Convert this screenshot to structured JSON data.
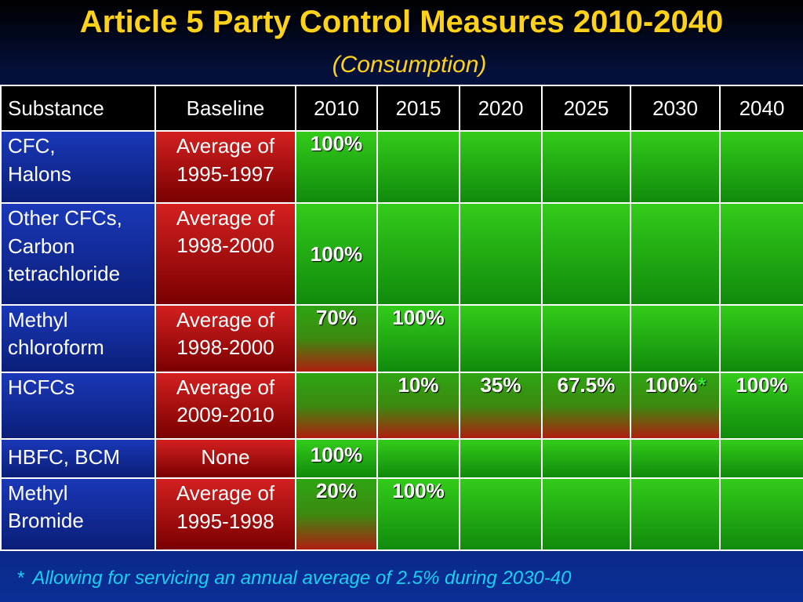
{
  "title": "Article 5 Party Control Measures 2010-2040",
  "subtitle": "(Consumption)",
  "headers": [
    "Substance",
    "Baseline",
    "2010",
    "2015",
    "2020",
    "2025",
    "2030",
    "2040"
  ],
  "rows": [
    {
      "substance": [
        "CFC,",
        "Halons"
      ],
      "baseline": [
        "Average of",
        "1995-1997"
      ],
      "values": [
        "100%",
        "",
        "",
        "",
        "",
        ""
      ]
    },
    {
      "substance": [
        "Other CFCs,",
        "Carbon",
        "tetrachloride"
      ],
      "baseline": [
        "Average of",
        "1998-2000"
      ],
      "values": [
        "100%",
        "",
        "",
        "",
        "",
        ""
      ]
    },
    {
      "substance": [
        "Methyl",
        "chloroform"
      ],
      "baseline": [
        "Average of",
        "1998-2000"
      ],
      "values": [
        "70%",
        "100%",
        "",
        "",
        "",
        ""
      ]
    },
    {
      "substance": [
        "HCFCs"
      ],
      "baseline": [
        "Average of",
        "2009-2010"
      ],
      "values": [
        "",
        "10%",
        "35%",
        "67.5%",
        "100%",
        "100%"
      ],
      "star_after_2030": "*"
    },
    {
      "substance": [
        "HBFC, BCM"
      ],
      "baseline": [
        "None"
      ],
      "values": [
        "100%",
        "",
        "",
        "",
        "",
        ""
      ]
    },
    {
      "substance": [
        "Methyl",
        "Bromide"
      ],
      "baseline": [
        "Average of",
        "1995-1998"
      ],
      "values": [
        "20%",
        "100%",
        "",
        "",
        "",
        ""
      ]
    }
  ],
  "footnote": {
    "marker": "*",
    "text": "Allowing for servicing an annual average of 2.5% during 2030-40"
  },
  "colors": {
    "title": "#ffd21a",
    "header_bg": "#000000",
    "substance_bg": "#1a38b8",
    "baseline_bg": "#c01818",
    "complete_bg": "#2eb814",
    "footnote": "#18d0f0"
  }
}
